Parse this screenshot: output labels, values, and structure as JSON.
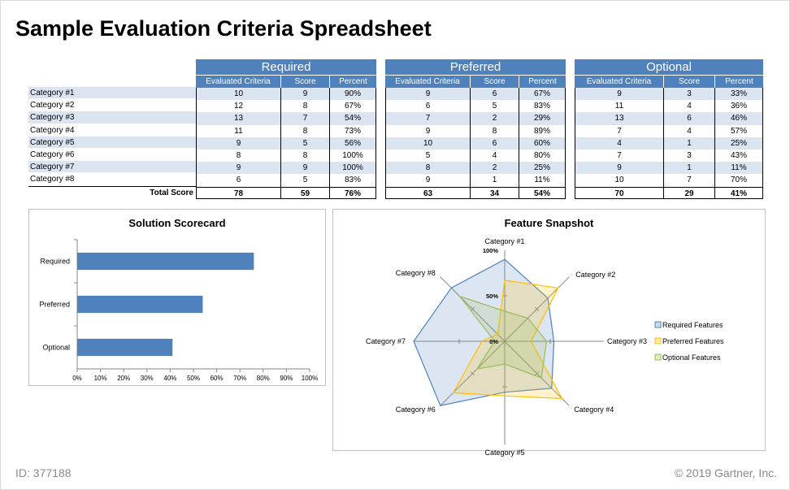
{
  "page": {
    "title": "Sample Evaluation Criteria Spreadsheet",
    "id_text": "ID: 377188",
    "copyright": "© 2019 Gartner, Inc."
  },
  "table": {
    "categories": [
      "Category #1",
      "Category #2",
      "Category #3",
      "Category #4",
      "Category #5",
      "Category #6",
      "Category #7",
      "Category #8"
    ],
    "total_label": "Total Score",
    "groups": [
      {
        "name": "Required",
        "headers": [
          "Evaluated Criteria",
          "Score",
          "Percent"
        ],
        "rows": [
          [
            "10",
            "9",
            "90%"
          ],
          [
            "12",
            "8",
            "67%"
          ],
          [
            "13",
            "7",
            "54%"
          ],
          [
            "11",
            "8",
            "73%"
          ],
          [
            "9",
            "5",
            "56%"
          ],
          [
            "8",
            "8",
            "100%"
          ],
          [
            "9",
            "9",
            "100%"
          ],
          [
            "6",
            "5",
            "83%"
          ]
        ],
        "total": [
          "78",
          "59",
          "76%"
        ]
      },
      {
        "name": "Preferred",
        "headers": [
          "Evaluated Criteria",
          "Score",
          "Percent"
        ],
        "rows": [
          [
            "9",
            "6",
            "67%"
          ],
          [
            "6",
            "5",
            "83%"
          ],
          [
            "7",
            "2",
            "29%"
          ],
          [
            "9",
            "8",
            "89%"
          ],
          [
            "10",
            "6",
            "60%"
          ],
          [
            "5",
            "4",
            "80%"
          ],
          [
            "8",
            "2",
            "25%"
          ],
          [
            "9",
            "1",
            "11%"
          ]
        ],
        "total": [
          "63",
          "34",
          "54%"
        ]
      },
      {
        "name": "Optional",
        "headers": [
          "Evaluated Criteria",
          "Score",
          "Percent"
        ],
        "rows": [
          [
            "9",
            "3",
            "33%"
          ],
          [
            "11",
            "4",
            "36%"
          ],
          [
            "13",
            "6",
            "46%"
          ],
          [
            "7",
            "4",
            "57%"
          ],
          [
            "4",
            "1",
            "25%"
          ],
          [
            "7",
            "3",
            "43%"
          ],
          [
            "9",
            "1",
            "11%"
          ],
          [
            "10",
            "7",
            "70%"
          ]
        ],
        "total": [
          "70",
          "29",
          "41%"
        ]
      }
    ]
  },
  "chart_data": [
    {
      "type": "bar",
      "orientation": "horizontal",
      "title": "Solution Scorecard",
      "categories": [
        "Required",
        "Preferred",
        "Optional"
      ],
      "values": [
        76,
        54,
        41
      ],
      "xlim": [
        0,
        100
      ],
      "ticks": [
        "0%",
        "10%",
        "20%",
        "30%",
        "40%",
        "50%",
        "60%",
        "70%",
        "80%",
        "90%",
        "100%"
      ],
      "color": "#4f81bd"
    },
    {
      "type": "radar",
      "title": "Feature Snapshot",
      "axes": [
        "Category #1",
        "Category #2",
        "Category #3",
        "Category #4",
        "Category #5",
        "Category #6",
        "Category #7",
        "Category #8"
      ],
      "ring_labels": [
        "100%",
        "50%",
        "0%"
      ],
      "range": [
        0,
        100
      ],
      "series": [
        {
          "name": "Required Features",
          "values": [
            90,
            67,
            54,
            73,
            56,
            100,
            100,
            83
          ],
          "color": "#4f81bd"
        },
        {
          "name": "Preferred Features",
          "values": [
            67,
            83,
            29,
            89,
            60,
            80,
            25,
            11
          ],
          "color": "#ffc000"
        },
        {
          "name": "Optional Features",
          "values": [
            33,
            36,
            46,
            57,
            25,
            43,
            11,
            70
          ],
          "color": "#9bbb59"
        }
      ]
    }
  ]
}
